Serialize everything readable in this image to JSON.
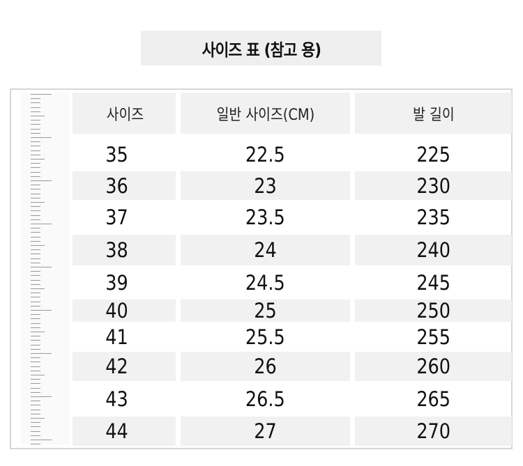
{
  "title": "사이즈 표 (참고 용)",
  "table": {
    "headers": [
      "사이즈",
      "일반 사이즈(CM)",
      "발 길이"
    ],
    "rows": [
      [
        "35",
        "22.5",
        "225"
      ],
      [
        "36",
        "23",
        "230"
      ],
      [
        "37",
        "23.5",
        "235"
      ],
      [
        "38",
        "24",
        "240"
      ],
      [
        "39",
        "24.5",
        "245"
      ],
      [
        "40",
        "25",
        "250"
      ],
      [
        "41",
        "25.5",
        "255"
      ],
      [
        "42",
        "26",
        "260"
      ],
      [
        "43",
        "26.5",
        "265"
      ],
      [
        "44",
        "27",
        "270"
      ]
    ]
  },
  "colors": {
    "row_shade": "#f1f1f1",
    "border": "#d6d6d6",
    "title_bg": "#efefef"
  }
}
